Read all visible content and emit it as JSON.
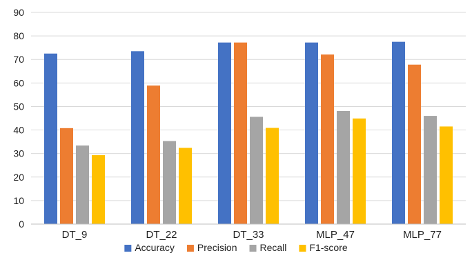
{
  "chart_data": {
    "type": "bar",
    "title": "",
    "xlabel": "",
    "ylabel": "",
    "ylim": [
      0,
      90
    ],
    "yticks": [
      0,
      10,
      20,
      30,
      40,
      50,
      60,
      70,
      80,
      90
    ],
    "grid": true,
    "legend_position": "bottom",
    "categories": [
      "DT_9",
      "DT_22",
      "DT_33",
      "MLP_47",
      "MLP_77"
    ],
    "series": [
      {
        "name": "Accuracy",
        "color": "#4472c4",
        "values": [
          72.5,
          73.5,
          77.2,
          77.2,
          77.5
        ]
      },
      {
        "name": "Precision",
        "color": "#ed7d31",
        "values": [
          40.8,
          58.9,
          77.2,
          72.1,
          67.8
        ]
      },
      {
        "name": "Recall",
        "color": "#a5a5a5",
        "values": [
          33.4,
          35.3,
          45.6,
          48.1,
          46.0
        ]
      },
      {
        "name": "F1-score",
        "color": "#ffc000",
        "values": [
          29.3,
          32.4,
          40.9,
          44.9,
          41.5
        ]
      }
    ]
  }
}
